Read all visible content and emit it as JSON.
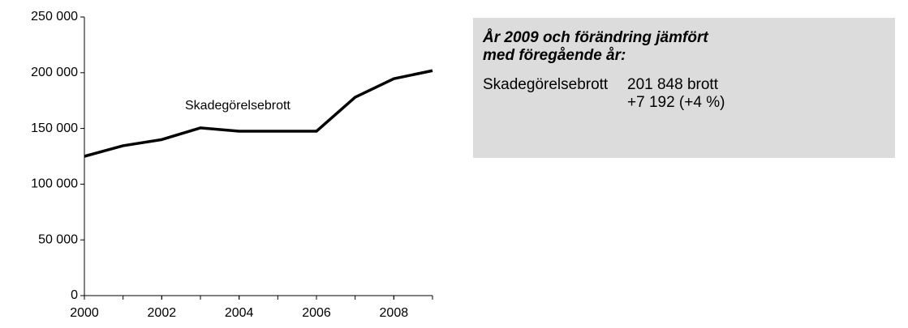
{
  "chart_data": {
    "type": "line",
    "x": [
      2000,
      2001,
      2002,
      2003,
      2004,
      2005,
      2006,
      2007,
      2008,
      2009
    ],
    "series": [
      {
        "name": "Skadegörelsebrott",
        "color": "#000000",
        "values": [
          125000,
          134500,
          140000,
          150500,
          147500,
          147500,
          147500,
          178000,
          194656,
          201848
        ]
      }
    ],
    "xlim": [
      2000,
      2009
    ],
    "xticks": [
      2000,
      2002,
      2004,
      2006,
      2008
    ],
    "ylim": [
      0,
      250000
    ],
    "yticks": [
      0,
      {
        "value": 50000,
        "label": "50 000"
      },
      {
        "value": 100000,
        "label": "100 000"
      },
      {
        "value": 150000,
        "label": "150 000"
      },
      {
        "value": 200000,
        "label": "200 000"
      },
      {
        "value": 250000,
        "label": "250 000"
      }
    ],
    "grid": false
  },
  "panel": {
    "title": "År 2009 och förändring jämfört med föregående år:",
    "rows": [
      [
        "Skadegörelsebrott",
        "201 848 brott",
        "+7 192 (+4 %)"
      ]
    ]
  }
}
